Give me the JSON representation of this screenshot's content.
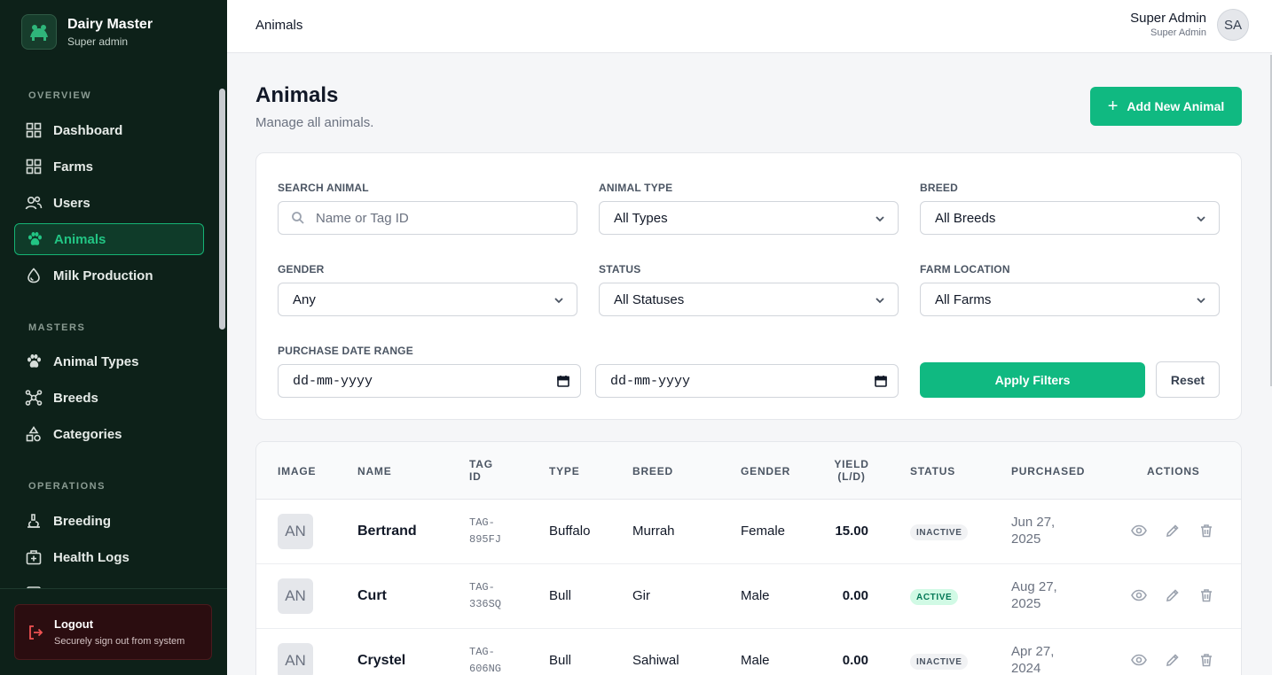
{
  "brand": {
    "title": "Dairy Master",
    "subtitle": "Super admin",
    "logo_icon": "cow-logo-icon"
  },
  "sidebar": {
    "sections": [
      {
        "label": "OVERVIEW"
      },
      {
        "label": "MASTERS"
      },
      {
        "label": "OPERATIONS"
      }
    ],
    "items": [
      {
        "label": "Dashboard",
        "icon": "grid-icon"
      },
      {
        "label": "Farms",
        "icon": "grid-icon"
      },
      {
        "label": "Users",
        "icon": "users-icon"
      },
      {
        "label": "Animals",
        "icon": "paw-icon",
        "active": true
      },
      {
        "label": "Milk Production",
        "icon": "droplet-icon"
      },
      {
        "label": "Animal Types",
        "icon": "paw-icon"
      },
      {
        "label": "Breeds",
        "icon": "network-icon"
      },
      {
        "label": "Categories",
        "icon": "shapes-icon"
      },
      {
        "label": "Breeding",
        "icon": "microscope-icon"
      },
      {
        "label": "Health Logs",
        "icon": "medkit-icon"
      }
    ],
    "logout": {
      "title": "Logout",
      "subtitle": "Securely sign out from system"
    }
  },
  "topbar": {
    "title": "Animals",
    "user_name": "Super Admin",
    "user_role": "Super Admin",
    "avatar_initials": "SA"
  },
  "page": {
    "title": "Animals",
    "subtitle": "Manage all animals.",
    "add_button": "Add New Animal"
  },
  "filters": {
    "search": {
      "label": "SEARCH ANIMAL",
      "placeholder": "Name or Tag ID"
    },
    "animal_type": {
      "label": "ANIMAL TYPE",
      "value": "All Types"
    },
    "breed": {
      "label": "BREED",
      "value": "All Breeds"
    },
    "gender": {
      "label": "GENDER",
      "value": "Any"
    },
    "status": {
      "label": "STATUS",
      "value": "All Statuses"
    },
    "farm_location": {
      "label": "FARM LOCATION",
      "value": "All Farms"
    },
    "purchase_date": {
      "label": "PURCHASE DATE RANGE",
      "from": "dd-mm-yyyy",
      "to": "dd-mm-yyyy"
    },
    "apply_label": "Apply Filters",
    "reset_label": "Reset"
  },
  "table": {
    "headers": {
      "image": "IMAGE",
      "name": "NAME",
      "tag_id_1": "TAG",
      "tag_id_2": "ID",
      "type": "TYPE",
      "breed": "BREED",
      "gender": "GENDER",
      "yield_1": "YIELD",
      "yield_2": "(L/D)",
      "status": "STATUS",
      "purchased": "PURCHASED",
      "actions": "ACTIONS"
    },
    "rows": [
      {
        "image": "AN",
        "name": "Bertrand",
        "tag_1": "TAG-",
        "tag_2": "895FJ",
        "type": "Buffalo",
        "breed": "Murrah",
        "gender": "Female",
        "yield": "15.00",
        "status": "INACTIVE",
        "purchased_1": "Jun 27,",
        "purchased_2": "2025"
      },
      {
        "image": "AN",
        "name": "Curt",
        "tag_1": "TAG-",
        "tag_2": "336SQ",
        "type": "Bull",
        "breed": "Gir",
        "gender": "Male",
        "yield": "0.00",
        "status": "ACTIVE",
        "purchased_1": "Aug 27,",
        "purchased_2": "2025"
      },
      {
        "image": "AN",
        "name": "Crystel",
        "tag_1": "TAG-",
        "tag_2": "606NG",
        "type": "Bull",
        "breed": "Sahiwal",
        "gender": "Male",
        "yield": "0.00",
        "status": "INACTIVE",
        "purchased_1": "Apr 27,",
        "purchased_2": "2024"
      }
    ]
  },
  "colors": {
    "sidebar_bg": "#0d2119",
    "accent": "#10b981",
    "active_text": "#22c584",
    "logout_bg": "#2b0d10"
  }
}
